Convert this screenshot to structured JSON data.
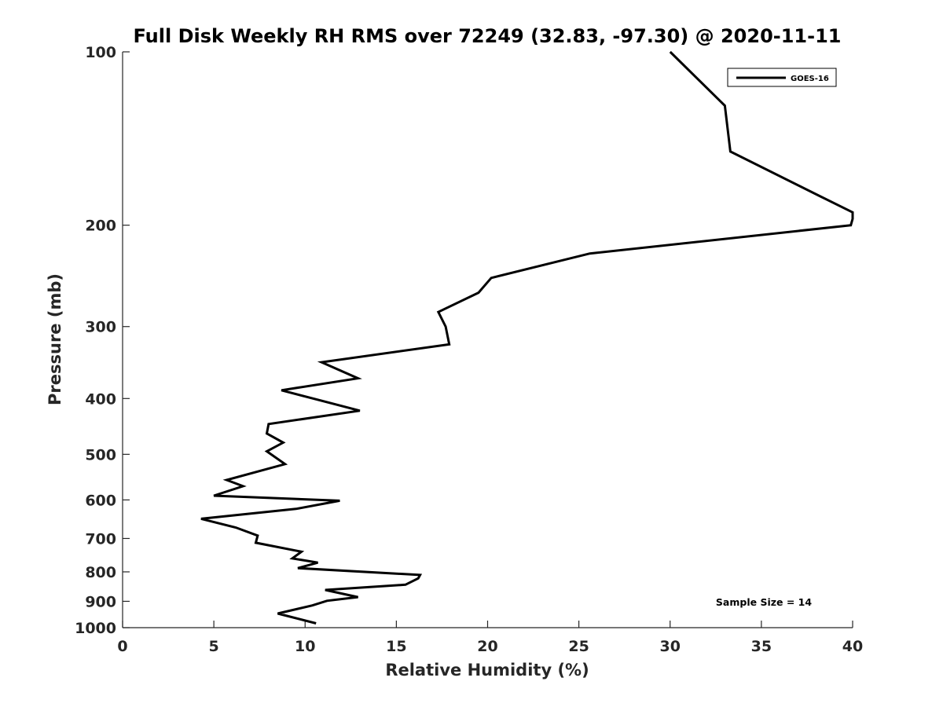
{
  "chart_data": {
    "type": "line",
    "title": "Full Disk Weekly RH RMS over 72249 (32.83, -97.30) @ 2020-11-11",
    "xlabel": "Relative Humidity (%)",
    "ylabel": "Pressure (mb)",
    "xlim": [
      0,
      40
    ],
    "ylim": [
      100,
      1000
    ],
    "y_scale": "log",
    "y_direction": "reversed",
    "x_ticks": [
      "0",
      "5",
      "10",
      "15",
      "20",
      "25",
      "30",
      "35",
      "40"
    ],
    "y_ticks": [
      "100",
      "200",
      "300",
      "400",
      "500",
      "600",
      "700",
      "800",
      "900",
      "1000"
    ],
    "grid": false,
    "legend_position": "top-right",
    "annotation": "Sample Size = 14",
    "line_color": "#000000",
    "series": [
      {
        "name": "GOES-16",
        "points": [
          [
            30.0,
            100
          ],
          [
            33.0,
            124
          ],
          [
            33.3,
            149
          ],
          [
            38.2,
            178
          ],
          [
            40.0,
            190
          ],
          [
            40.0,
            195
          ],
          [
            39.9,
            200
          ],
          [
            25.6,
            224
          ],
          [
            20.2,
            247
          ],
          [
            19.5,
            262
          ],
          [
            17.3,
            283
          ],
          [
            17.7,
            300
          ],
          [
            17.9,
            322
          ],
          [
            10.9,
            346
          ],
          [
            12.9,
            369
          ],
          [
            8.7,
            387
          ],
          [
            13.0,
            420
          ],
          [
            8.0,
            443
          ],
          [
            7.9,
            460
          ],
          [
            8.8,
            477
          ],
          [
            7.9,
            494
          ],
          [
            8.9,
            520
          ],
          [
            5.7,
            554
          ],
          [
            6.6,
            568
          ],
          [
            5.0,
            590
          ],
          [
            11.9,
            602
          ],
          [
            9.5,
            622
          ],
          [
            4.3,
            647
          ],
          [
            6.2,
            670
          ],
          [
            7.4,
            692
          ],
          [
            7.3,
            712
          ],
          [
            9.8,
            738
          ],
          [
            9.3,
            758
          ],
          [
            10.7,
            771
          ],
          [
            9.6,
            788
          ],
          [
            16.3,
            810
          ],
          [
            16.2,
            821
          ],
          [
            15.5,
            842
          ],
          [
            11.1,
            860
          ],
          [
            12.9,
            885
          ],
          [
            11.2,
            898
          ],
          [
            10.4,
            915
          ],
          [
            8.5,
            945
          ],
          [
            10.6,
            983
          ]
        ]
      }
    ]
  }
}
